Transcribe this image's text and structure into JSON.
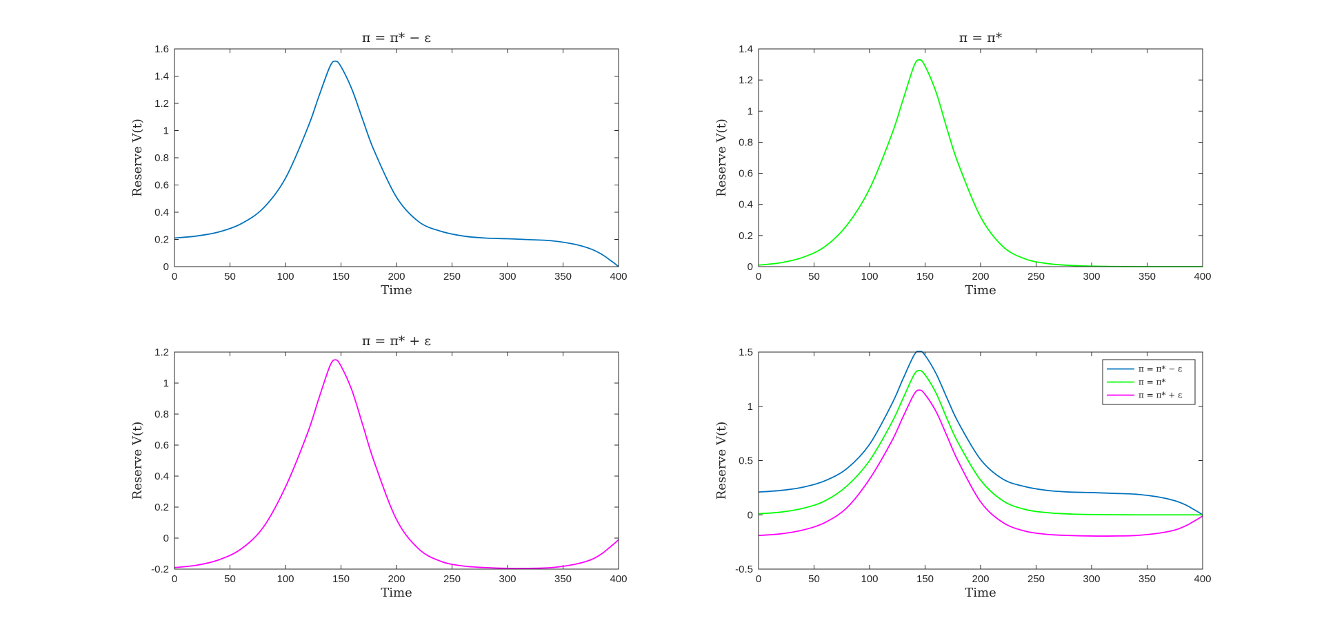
{
  "figure": {
    "background": "#ffffff"
  },
  "chart_data": [
    {
      "type": "line",
      "title": "π = π* − ε",
      "xlabel": "Time",
      "ylabel": "Reserve V(t)",
      "xlim": [
        0,
        400
      ],
      "ylim": [
        0,
        1.6
      ],
      "xticks": [
        0,
        50,
        100,
        150,
        200,
        250,
        300,
        350,
        400
      ],
      "yticks": [
        0,
        0.2,
        0.4,
        0.6,
        0.8,
        1,
        1.2,
        1.4,
        1.6
      ],
      "grid": false,
      "series": [
        {
          "color": "#0072BD",
          "x": [
            0,
            20,
            40,
            60,
            80,
            100,
            120,
            130,
            140,
            145,
            150,
            160,
            170,
            180,
            200,
            220,
            240,
            260,
            280,
            300,
            320,
            340,
            360,
            375,
            385,
            392,
            397,
            400
          ],
          "y": [
            0.21,
            0.225,
            0.255,
            0.315,
            0.43,
            0.65,
            1.02,
            1.25,
            1.47,
            1.51,
            1.47,
            1.3,
            1.07,
            0.85,
            0.51,
            0.33,
            0.26,
            0.225,
            0.21,
            0.205,
            0.198,
            0.19,
            0.165,
            0.13,
            0.09,
            0.05,
            0.02,
            0.0
          ]
        }
      ]
    },
    {
      "type": "line",
      "title": "π = π*",
      "xlabel": "Time",
      "ylabel": "Reserve V(t)",
      "xlim": [
        0,
        400
      ],
      "ylim": [
        0,
        1.4
      ],
      "xticks": [
        0,
        50,
        100,
        150,
        200,
        250,
        300,
        350,
        400
      ],
      "yticks": [
        0,
        0.2,
        0.4,
        0.6,
        0.8,
        1,
        1.2,
        1.4
      ],
      "grid": false,
      "series": [
        {
          "color": "#00FF00",
          "x": [
            0,
            20,
            40,
            60,
            80,
            100,
            120,
            130,
            140,
            145,
            150,
            160,
            170,
            180,
            200,
            220,
            240,
            260,
            280,
            300,
            320,
            340,
            360,
            380,
            400
          ],
          "y": [
            0.01,
            0.025,
            0.06,
            0.13,
            0.27,
            0.5,
            0.85,
            1.07,
            1.29,
            1.33,
            1.29,
            1.12,
            0.88,
            0.66,
            0.32,
            0.13,
            0.05,
            0.02,
            0.008,
            0.003,
            0.001,
            0.0,
            0.0,
            0.0,
            0.0
          ]
        }
      ]
    },
    {
      "type": "line",
      "title": "π = π* + ε",
      "xlabel": "Time",
      "ylabel": "Reserve V(t)",
      "xlim": [
        0,
        400
      ],
      "ylim": [
        -0.2,
        1.2
      ],
      "xticks": [
        0,
        50,
        100,
        150,
        200,
        250,
        300,
        350,
        400
      ],
      "yticks": [
        -0.2,
        0,
        0.2,
        0.4,
        0.6,
        0.8,
        1,
        1.2
      ],
      "grid": false,
      "series": [
        {
          "color": "#FF00FF",
          "x": [
            0,
            20,
            40,
            60,
            80,
            100,
            120,
            130,
            140,
            145,
            150,
            160,
            170,
            180,
            200,
            220,
            240,
            260,
            280,
            300,
            320,
            340,
            360,
            375,
            385,
            392,
            397,
            400
          ],
          "y": [
            -0.19,
            -0.175,
            -0.14,
            -0.07,
            0.07,
            0.33,
            0.68,
            0.9,
            1.11,
            1.15,
            1.11,
            0.95,
            0.72,
            0.49,
            0.12,
            -0.07,
            -0.15,
            -0.18,
            -0.19,
            -0.195,
            -0.195,
            -0.19,
            -0.17,
            -0.14,
            -0.1,
            -0.06,
            -0.03,
            -0.01
          ]
        }
      ]
    },
    {
      "type": "line",
      "title": "",
      "xlabel": "Time",
      "ylabel": "Reserve V(t)",
      "xlim": [
        0,
        400
      ],
      "ylim": [
        -0.5,
        1.5
      ],
      "xticks": [
        0,
        50,
        100,
        150,
        200,
        250,
        300,
        350,
        400
      ],
      "yticks": [
        -0.5,
        0,
        0.5,
        1,
        1.5
      ],
      "grid": false,
      "legend": "top-right",
      "series": [
        {
          "name": "π = π* − ε",
          "color": "#0072BD",
          "x": [
            0,
            20,
            40,
            60,
            80,
            100,
            120,
            130,
            140,
            145,
            150,
            160,
            170,
            180,
            200,
            220,
            240,
            260,
            280,
            300,
            320,
            340,
            360,
            375,
            385,
            392,
            397,
            400
          ],
          "y": [
            0.21,
            0.225,
            0.255,
            0.315,
            0.43,
            0.65,
            1.02,
            1.25,
            1.47,
            1.51,
            1.47,
            1.3,
            1.07,
            0.85,
            0.51,
            0.33,
            0.26,
            0.225,
            0.21,
            0.205,
            0.198,
            0.19,
            0.165,
            0.13,
            0.09,
            0.05,
            0.02,
            0.0
          ]
        },
        {
          "name": "π = π*",
          "color": "#00FF00",
          "x": [
            0,
            20,
            40,
            60,
            80,
            100,
            120,
            130,
            140,
            145,
            150,
            160,
            170,
            180,
            200,
            220,
            240,
            260,
            280,
            300,
            320,
            340,
            360,
            380,
            400
          ],
          "y": [
            0.01,
            0.025,
            0.06,
            0.13,
            0.27,
            0.5,
            0.85,
            1.07,
            1.29,
            1.33,
            1.29,
            1.12,
            0.88,
            0.66,
            0.32,
            0.13,
            0.05,
            0.02,
            0.008,
            0.003,
            0.001,
            0.0,
            0.0,
            0.0,
            0.0
          ]
        },
        {
          "name": "π = π* + ε",
          "color": "#FF00FF",
          "x": [
            0,
            20,
            40,
            60,
            80,
            100,
            120,
            130,
            140,
            145,
            150,
            160,
            170,
            180,
            200,
            220,
            240,
            260,
            280,
            300,
            320,
            340,
            360,
            375,
            385,
            392,
            397,
            400
          ],
          "y": [
            -0.19,
            -0.175,
            -0.14,
            -0.07,
            0.07,
            0.33,
            0.68,
            0.9,
            1.11,
            1.15,
            1.11,
            0.95,
            0.72,
            0.49,
            0.12,
            -0.07,
            -0.15,
            -0.18,
            -0.19,
            -0.195,
            -0.195,
            -0.19,
            -0.17,
            -0.14,
            -0.1,
            -0.06,
            -0.03,
            -0.01
          ]
        }
      ]
    }
  ]
}
